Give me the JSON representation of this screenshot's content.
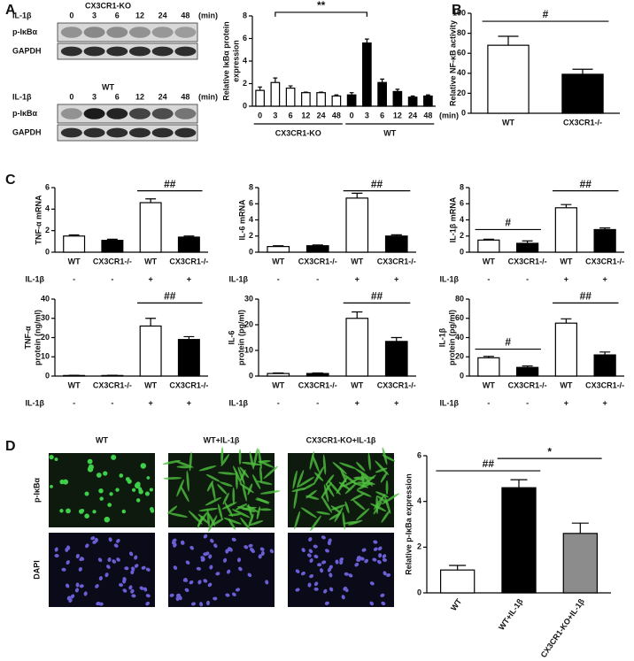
{
  "panel_labels": [
    "A",
    "B",
    "C",
    "D"
  ],
  "blots": [
    {
      "title": "CX3CR1-KO",
      "time_label": "IL-1β",
      "times": [
        "0",
        "3",
        "6",
        "12",
        "24",
        "48"
      ],
      "time_unit": "(min)",
      "rows": [
        "p-IκBα",
        "GAPDH"
      ]
    },
    {
      "title": "WT",
      "time_label": "IL-1β",
      "times": [
        "0",
        "3",
        "6",
        "12",
        "24",
        "48"
      ],
      "time_unit": "(min)",
      "rows": [
        "p-IκBα",
        "GAPDH"
      ]
    }
  ],
  "micrographs": {
    "columns": [
      "WT",
      "WT+IL-1β",
      "CX3CR1-KO+IL-1β"
    ],
    "rows": [
      "p-IκBα",
      "DAPI"
    ]
  },
  "chart_data": [
    {
      "type": "bar",
      "categories": [
        "0",
        "3",
        "6",
        "12",
        "24",
        "48",
        "0",
        "3",
        "6",
        "12",
        "24",
        "48"
      ],
      "values": [
        1.4,
        2.1,
        1.6,
        1.2,
        1.2,
        0.9,
        1.0,
        5.6,
        2.1,
        1.3,
        0.8,
        0.9
      ],
      "errors": [
        0.3,
        0.4,
        0.2,
        0.05,
        0.05,
        0.1,
        0.2,
        0.35,
        0.3,
        0.2,
        0.1,
        0.1
      ],
      "colors": [
        "#ffffff",
        "#ffffff",
        "#ffffff",
        "#ffffff",
        "#ffffff",
        "#ffffff",
        "#000000",
        "#000000",
        "#000000",
        "#000000",
        "#000000",
        "#000000"
      ],
      "ylim": [
        0,
        8
      ],
      "yticks": [
        0,
        2,
        4,
        6,
        8
      ],
      "ylabel": [
        "Relative IκBα protein",
        "expression"
      ],
      "groups": [
        "CX3CR1-KO",
        "WT"
      ],
      "x_unit": "(min)",
      "annotations": [
        "**"
      ]
    },
    {
      "type": "bar",
      "categories": [
        "WT",
        "CX3CR1-/-"
      ],
      "values": [
        68,
        39
      ],
      "errors": [
        9,
        5
      ],
      "colors": [
        "#ffffff",
        "#000000"
      ],
      "ylim": [
        0,
        100
      ],
      "yticks": [
        0,
        20,
        40,
        60,
        80,
        100
      ],
      "ylabel": [
        "Relative NF-κB activity"
      ],
      "annotations": [
        "#"
      ]
    },
    {
      "type": "bar",
      "categories": [
        "WT",
        "CX3CR1-/-",
        "WT",
        "CX3CR1-/-"
      ],
      "values": [
        1.5,
        1.1,
        4.6,
        1.4
      ],
      "errors": [
        0.1,
        0.1,
        0.35,
        0.1
      ],
      "colors": [
        "#ffffff",
        "#000000",
        "#ffffff",
        "#000000"
      ],
      "ylim": [
        0,
        6
      ],
      "yticks": [
        0,
        2,
        4,
        6
      ],
      "ylabel": [
        "TNF-α mRNA"
      ],
      "treatment_label": "IL-1β",
      "treatment": [
        "-",
        "-",
        "+",
        "+"
      ],
      "annotations": [
        "##"
      ]
    },
    {
      "type": "bar",
      "categories": [
        "WT",
        "CX3CR1-/-",
        "WT",
        "CX3CR1-/-"
      ],
      "values": [
        0.7,
        0.8,
        6.7,
        2.0
      ],
      "errors": [
        0.1,
        0.1,
        0.6,
        0.15
      ],
      "colors": [
        "#ffffff",
        "#000000",
        "#ffffff",
        "#000000"
      ],
      "ylim": [
        0,
        8
      ],
      "yticks": [
        0,
        2,
        4,
        6,
        8
      ],
      "ylabel": [
        "IL-6 mRNA"
      ],
      "treatment_label": "IL-1β",
      "treatment": [
        "-",
        "-",
        "+",
        "+"
      ],
      "annotations": [
        "##"
      ]
    },
    {
      "type": "bar",
      "categories": [
        "WT",
        "CX3CR1-/-",
        "WT",
        "CX3CR1-/-"
      ],
      "values": [
        1.5,
        1.1,
        5.5,
        2.8
      ],
      "errors": [
        0.1,
        0.3,
        0.4,
        0.2
      ],
      "colors": [
        "#ffffff",
        "#000000",
        "#ffffff",
        "#000000"
      ],
      "ylim": [
        0,
        8
      ],
      "yticks": [
        0,
        2,
        4,
        6,
        8
      ],
      "ylabel": [
        "IL-1β mRNA"
      ],
      "treatment_label": "IL-1β",
      "treatment": [
        "-",
        "-",
        "+",
        "+"
      ],
      "annotations": [
        "#",
        "##"
      ]
    },
    {
      "type": "bar",
      "categories": [
        "WT",
        "CX3CR1-/-",
        "WT",
        "CX3CR1-/-"
      ],
      "values": [
        0.3,
        0.3,
        26,
        19
      ],
      "errors": [
        0.1,
        0.1,
        4,
        1.5
      ],
      "colors": [
        "#ffffff",
        "#000000",
        "#ffffff",
        "#000000"
      ],
      "ylim": [
        0,
        40
      ],
      "yticks": [
        0,
        10,
        20,
        30,
        40
      ],
      "ylabel": [
        "TNF-α",
        "protein (ng/ml)"
      ],
      "treatment_label": "IL-1β",
      "treatment": [
        "-",
        "-",
        "+",
        "+"
      ],
      "annotations": [
        "##"
      ]
    },
    {
      "type": "bar",
      "categories": [
        "WT",
        "CX3CR1-/-",
        "WT",
        "CX3CR1-/-"
      ],
      "values": [
        1,
        1,
        22.5,
        13.5
      ],
      "errors": [
        0.2,
        0.2,
        2.5,
        1.5
      ],
      "colors": [
        "#ffffff",
        "#000000",
        "#ffffff",
        "#000000"
      ],
      "ylim": [
        0,
        30
      ],
      "yticks": [
        0,
        10,
        20,
        30
      ],
      "ylabel": [
        "IL-6",
        "protein (pg/ml)"
      ],
      "treatment_label": "IL-1β",
      "treatment": [
        "-",
        "-",
        "+",
        "+"
      ],
      "annotations": [
        "##"
      ]
    },
    {
      "type": "bar",
      "categories": [
        "WT",
        "CX3CR1-/-",
        "WT",
        "CX3CR1-/-"
      ],
      "values": [
        19,
        9,
        55,
        22
      ],
      "errors": [
        1.5,
        1.5,
        4.5,
        3
      ],
      "colors": [
        "#ffffff",
        "#000000",
        "#ffffff",
        "#000000"
      ],
      "ylim": [
        0,
        80
      ],
      "yticks": [
        0,
        20,
        40,
        60,
        80
      ],
      "ylabel": [
        "IL-1β",
        "protein (pg/ml)"
      ],
      "treatment_label": "IL-1β",
      "treatment": [
        "-",
        "-",
        "+",
        "+"
      ],
      "annotations": [
        "#",
        "##"
      ]
    },
    {
      "type": "bar",
      "categories": [
        "WT",
        "WT+IL-1β",
        "CX3CR1-KO+IL-1β"
      ],
      "values": [
        1.0,
        4.6,
        2.6
      ],
      "errors": [
        0.2,
        0.35,
        0.45
      ],
      "colors": [
        "#ffffff",
        "#000000",
        "#8c8c8c"
      ],
      "ylim": [
        0,
        6
      ],
      "yticks": [
        0,
        2,
        4,
        6
      ],
      "ylabel": [
        "Relative p-IκBa expression"
      ],
      "annotations": [
        "##",
        "*"
      ]
    }
  ]
}
